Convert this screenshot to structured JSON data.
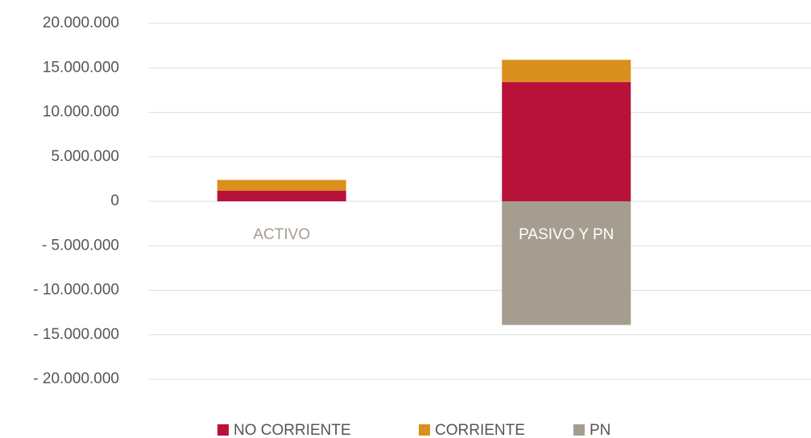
{
  "chart_data": {
    "type": "bar",
    "stacked": true,
    "categories": [
      "ACTIVO",
      "PASIVO Y PN"
    ],
    "series": [
      {
        "name": "NO CORRIENTE",
        "color": "#b8123a",
        "values": [
          1200000,
          13400000
        ]
      },
      {
        "name": "CORRIENTE",
        "color": "#d9901e",
        "values": [
          1200000,
          2500000
        ]
      },
      {
        "name": "PN",
        "color": "#a59d8f",
        "values": [
          0,
          -13900000
        ]
      }
    ],
    "ylim": [
      -20000000,
      20000000
    ],
    "yticks": [
      {
        "value": 20000000,
        "label": "20.000.000"
      },
      {
        "value": 15000000,
        "label": "15.000.000"
      },
      {
        "value": 10000000,
        "label": "10.000.000"
      },
      {
        "value": 5000000,
        "label": "5.000.000"
      },
      0,
      {
        "value": -5000000,
        "label": "- 5.000.000"
      },
      {
        "value": -10000000,
        "label": "- 10.000.000"
      },
      {
        "value": -15000000,
        "label": "- 15.000.000"
      },
      {
        "value": -20000000,
        "label": "- 20.000.000"
      }
    ],
    "grid": true,
    "legend": "bottom"
  }
}
